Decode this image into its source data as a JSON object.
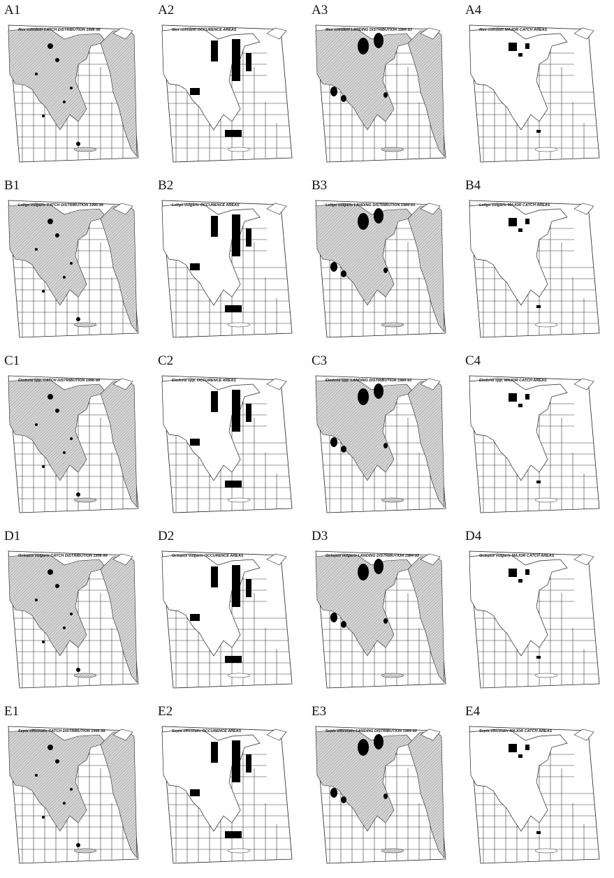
{
  "panels": [
    [
      {
        "label": "A1",
        "title": "Illex coindetii CATCH DISTRIBUTION 1996-99"
      },
      {
        "label": "A2",
        "title": "Illex coindetii OCCURENCE AREAS"
      },
      {
        "label": "A3",
        "title": "Illex coindetii LANDING DISTRIBUTION 1984-93"
      },
      {
        "label": "A4",
        "title": "Illex coindetii MAJOR CATCH AREAS"
      }
    ],
    [
      {
        "label": "B1",
        "title": "Loligo vulgaris CATCH DISTRIBUTION 1996-99"
      },
      {
        "label": "B2",
        "title": "Loligo vulgaris OCCURENCE AREAS"
      },
      {
        "label": "B3",
        "title": "Loligo vulgaris LANDING DISTRIBUTION 1984-93"
      },
      {
        "label": "B4",
        "title": "Loligo vulgaris MAJOR CATCH AREAS"
      }
    ],
    [
      {
        "label": "C1",
        "title": "Eledone spp. CATCH DISTRIBUTION 1996-99"
      },
      {
        "label": "C2",
        "title": "Eledone spp. OCCURENCE AREAS"
      },
      {
        "label": "C3",
        "title": "Eledone spp. LANDING DISTRIBUTION 1984-93"
      },
      {
        "label": "C4",
        "title": "Eledone spp. MAJOR CATCH AREAS"
      }
    ],
    [
      {
        "label": "D1",
        "title": "Octopus vulgaris CATCH DISTRIBUTION 1996-99"
      },
      {
        "label": "D2",
        "title": "Octopus vulgaris OCCURENCE AREAS"
      },
      {
        "label": "D3",
        "title": "Octopus vulgaris LANDING DISTRIBUTION 1984-93"
      },
      {
        "label": "D4",
        "title": "Octopus vulgaris MAJOR CATCH AREAS"
      }
    ],
    [
      {
        "label": "E1",
        "title": "Sepia officinalis CATCH DISTRIBUTION 1996-99"
      },
      {
        "label": "E2",
        "title": "Sepia officinalis OCCURENCE AREAS"
      },
      {
        "label": "E3",
        "title": "Sepia officinalis LANDING DISTRIBUTION 1984-93"
      },
      {
        "label": "E4",
        "title": "Sepia officinalis MAJOR CATCH AREAS"
      }
    ]
  ]
}
